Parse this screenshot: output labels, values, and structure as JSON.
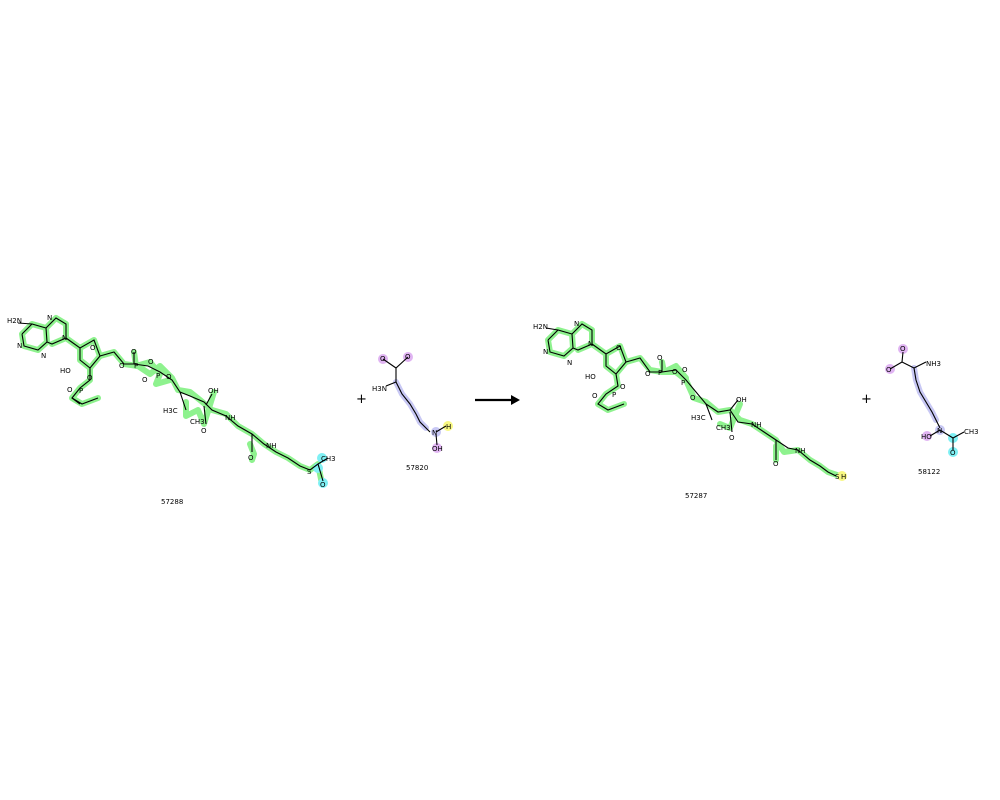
{
  "reaction": {
    "plus_sign": "+",
    "reactants": [
      {
        "id": "57288",
        "atoms": {
          "nh2": "H2N",
          "n1": "N",
          "n2": "N",
          "n3": "N",
          "n4": "N",
          "ho": "HO",
          "o1": "O",
          "o2": "O",
          "o3": "O",
          "o4": "O",
          "o5": "O",
          "o6": "O",
          "o7": "O",
          "o8": "O",
          "p1": "P",
          "p2": "P",
          "p3": "P",
          "oh": "OH",
          "h3c": "H3C",
          "ch3a": "CH3",
          "o9": "O",
          "nh1": "NH",
          "o10": "O",
          "nh2b": "NH",
          "s": "S",
          "ch3b": "CH3",
          "o11": "O"
        }
      },
      {
        "id": "57820",
        "atoms": {
          "o1": "O",
          "o2": "O",
          "h3n": "H3N",
          "n": "N",
          "h": "H",
          "oh": "OH"
        }
      }
    ],
    "products": [
      {
        "id": "57287",
        "atoms": {
          "nh2": "H2N",
          "n1": "N",
          "n2": "N",
          "n3": "N",
          "n4": "N",
          "ho": "HO",
          "o1": "O",
          "o2": "O",
          "o3": "O",
          "o4": "O",
          "o5": "O",
          "o6": "O",
          "o7": "O",
          "o8": "O",
          "p1": "P",
          "p2": "P",
          "p3": "P",
          "oh": "OH",
          "h3c": "H3C",
          "ch3a": "CH3",
          "o9": "O",
          "nh1": "NH",
          "o10": "O",
          "nh2b": "NH",
          "s": "S",
          "h": "H"
        }
      },
      {
        "id": "58122",
        "atoms": {
          "o1": "O",
          "o2": "O",
          "nh3": "NH3",
          "n": "N",
          "ho": "HO",
          "ch3": "CH3",
          "o3": "O"
        }
      }
    ]
  },
  "colors": {
    "carbon_backbone": "#8ef28e",
    "amine_chain": "#c8c8f4",
    "carboxylate": "#e0b4f2",
    "acetyl": "#7ff0f4",
    "transferred_h": "#f8f882"
  }
}
